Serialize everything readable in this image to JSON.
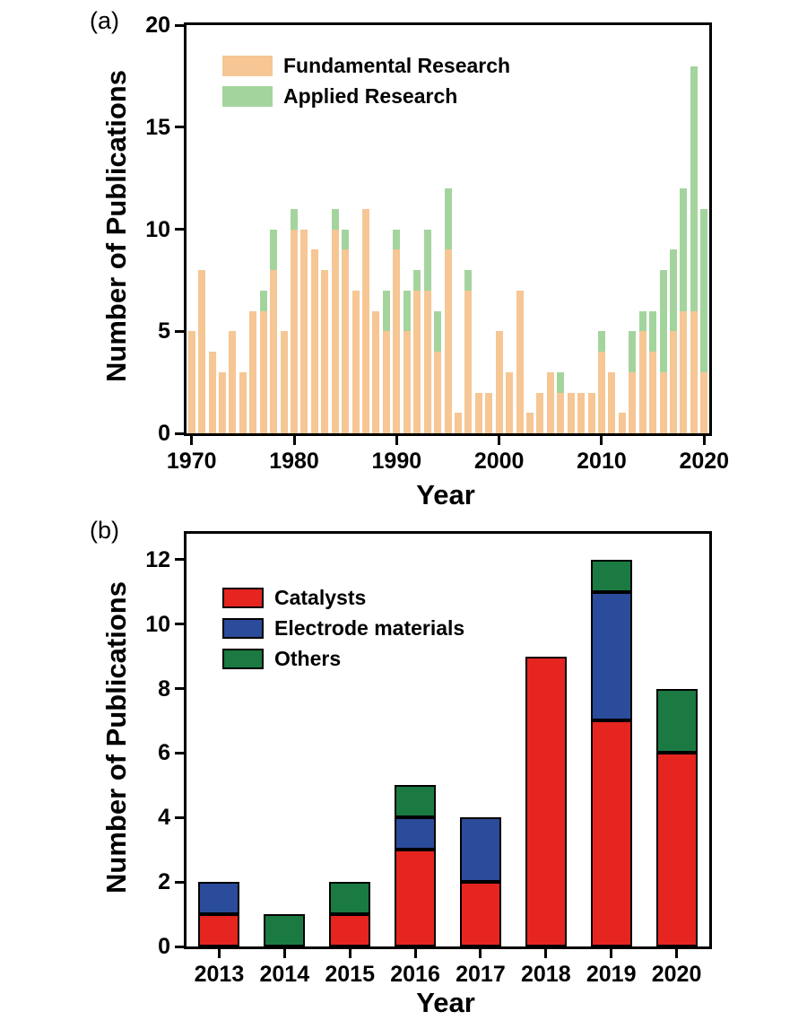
{
  "figure": {
    "panel_a_label": "(a)",
    "panel_b_label": "(b)"
  },
  "chart_data": [
    {
      "type": "bar",
      "stacked": true,
      "panel": "a",
      "xlabel": "Year",
      "ylabel": "Number of Publications",
      "ylim": [
        0,
        20
      ],
      "yticks": [
        0,
        5,
        10,
        15,
        20
      ],
      "xticks": [
        1970,
        1980,
        1990,
        2000,
        2010,
        2020
      ],
      "legend_position": "top-left",
      "grid": false,
      "categories": [
        1970,
        1971,
        1972,
        1973,
        1974,
        1975,
        1976,
        1977,
        1978,
        1979,
        1980,
        1981,
        1982,
        1983,
        1984,
        1985,
        1986,
        1987,
        1988,
        1989,
        1990,
        1991,
        1992,
        1993,
        1994,
        1995,
        1996,
        1997,
        1998,
        1999,
        2000,
        2001,
        2002,
        2003,
        2004,
        2005,
        2006,
        2007,
        2008,
        2009,
        2010,
        2011,
        2012,
        2013,
        2014,
        2015,
        2016,
        2017,
        2018,
        2019,
        2020
      ],
      "series": [
        {
          "name": "Fundamental Research",
          "color": "#F6C694",
          "values": [
            5,
            8,
            4,
            3,
            5,
            3,
            6,
            6,
            8,
            5,
            10,
            10,
            9,
            8,
            10,
            9,
            7,
            11,
            6,
            5,
            9,
            5,
            7,
            7,
            4,
            9,
            1,
            7,
            2,
            2,
            5,
            3,
            7,
            1,
            2,
            3,
            2,
            2,
            2,
            2,
            4,
            3,
            1,
            3,
            5,
            4,
            3,
            5,
            6,
            6,
            3
          ]
        },
        {
          "name": "Applied Research",
          "color": "#A4D49D",
          "values": [
            0,
            0,
            0,
            0,
            0,
            0,
            0,
            1,
            2,
            0,
            1,
            0,
            0,
            0,
            1,
            1,
            0,
            0,
            0,
            2,
            1,
            2,
            1,
            3,
            2,
            3,
            0,
            1,
            0,
            0,
            0,
            0,
            0,
            0,
            0,
            0,
            1,
            0,
            0,
            0,
            1,
            0,
            0,
            2,
            1,
            2,
            5,
            4,
            6,
            12,
            8
          ]
        }
      ]
    },
    {
      "type": "bar",
      "stacked": true,
      "panel": "b",
      "xlabel": "Year",
      "ylabel": "Number of Publications",
      "ylim": [
        0,
        12.8
      ],
      "yticks": [
        0,
        2,
        4,
        6,
        8,
        10,
        12
      ],
      "legend_position": "top-left",
      "grid": false,
      "categories": [
        2013,
        2014,
        2015,
        2016,
        2017,
        2018,
        2019,
        2020
      ],
      "series": [
        {
          "name": "Catalysts",
          "color": "#E62520",
          "values": [
            1,
            0,
            1,
            3,
            2,
            9,
            7,
            6
          ]
        },
        {
          "name": "Electrode materials",
          "color": "#2B4B9B",
          "values": [
            1,
            0,
            0,
            1,
            2,
            0,
            4,
            0
          ]
        },
        {
          "name": "Others",
          "color": "#1B7A41",
          "values": [
            0,
            1,
            1,
            1,
            0,
            0,
            1,
            2
          ]
        }
      ]
    }
  ]
}
